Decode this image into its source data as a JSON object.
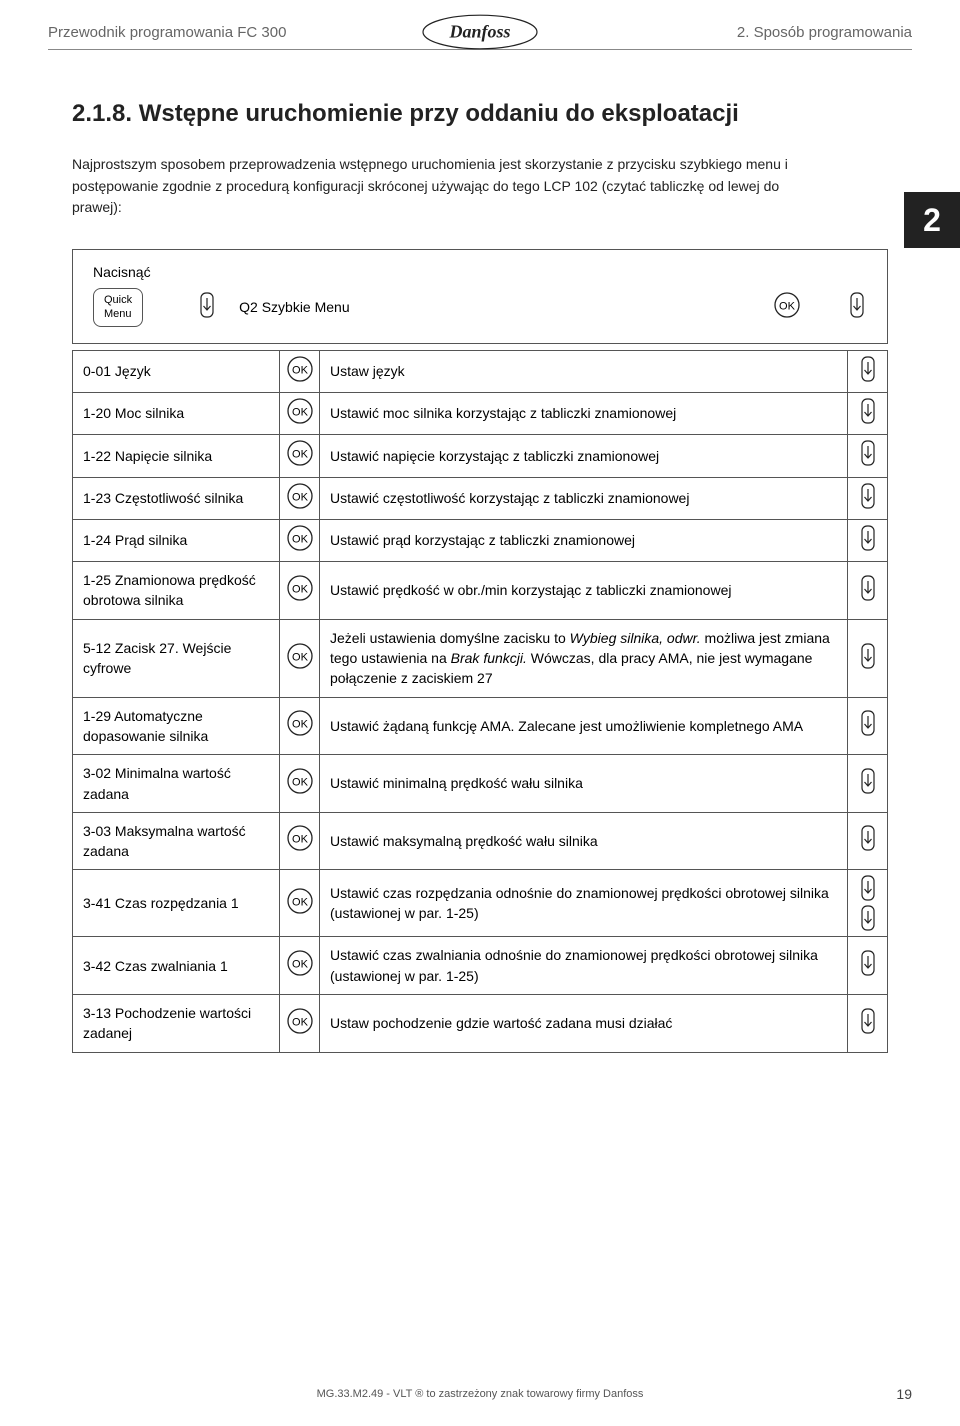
{
  "header": {
    "left": "Przewodnik programowania FC 300",
    "right": "2. Sposób programowania"
  },
  "section": {
    "heading": "2.1.8. Wstępne uruchomienie przy oddaniu do eksploatacji",
    "intro": "Najprostszym sposobem przeprowadzenia wstępnego uruchomienia jest skorzystanie z przycisku szybkiego menu i postępowanie zgodnie z procedurą konfiguracji skróconej używając do tego LCP 102 (czytać tabliczkę od lewej do prawej):",
    "badge": "2"
  },
  "press": {
    "label": "Nacisnąć",
    "quick1": "Quick",
    "quick2": "Menu",
    "q2": "Q2 Szybkie Menu"
  },
  "rows": [
    {
      "p": "0-01 Język",
      "d": "Ustaw język",
      "dn": 1
    },
    {
      "p": "1-20 Moc silnika",
      "d": "Ustawić moc silnika korzystając z tabliczki znamionowej",
      "dn": 1
    },
    {
      "p": "1-22 Napięcie silnika",
      "d": "Ustawić napięcie korzystając z tabliczki znamionowej",
      "dn": 1
    },
    {
      "p": "1-23 Częstotliwość silnika",
      "d": "Ustawić częstotliwość korzystając z tabliczki znamionowej",
      "dn": 1
    },
    {
      "p": "1-24 Prąd silnika",
      "d": "Ustawić prąd korzystając z tabliczki znamionowej",
      "dn": 1
    },
    {
      "p": "1-25 Znamionowa prędkość obrotowa silnika",
      "d": "Ustawić prędkość w obr./min korzystając z tabliczki znamionowej",
      "dn": 1
    },
    {
      "p": "5-12 Zacisk 27. Wejście cyfrowe",
      "d": "Jeżeli ustawienia domyślne zacisku to <span class=\"italic\">Wybieg silnika, odwr.</span> możliwa jest zmiana tego ustawienia na <span class=\"italic\">Brak funkcji.</span> Wówczas, dla pracy AMA, nie jest wymagane połączenie z zaciskiem 27",
      "dn": 1
    },
    {
      "p": "1-29 Automatyczne dopasowanie silnika",
      "d": "Ustawić żądaną funkcję AMA. Zalecane jest umożliwienie kompletnego AMA",
      "dn": 1
    },
    {
      "p": "3-02 Minimalna wartość zadana",
      "d": "Ustawić minimalną prędkość wału silnika",
      "dn": 1
    },
    {
      "p": "3-03 Maksymalna wartość zadana",
      "d": "Ustawić maksymalną prędkość wału silnika",
      "dn": 1
    },
    {
      "p": "3-41 Czas rozpędzania 1",
      "d": "Ustawić czas rozpędzania odnośnie do znamionowej prędkości obrotowej silnika (ustawionej w par. 1-25)",
      "dn": 2
    },
    {
      "p": "3-42 Czas zwalniania 1",
      "d": "Ustawić czas zwalniania odnośnie do znamionowej prędkości obrotowej silnika (ustawionej w par. 1-25)",
      "dn": 1
    },
    {
      "p": "3-13 Pochodzenie wartości zadanej",
      "d": "Ustaw pochodzenie gdzie wartość zadana musi działać",
      "dn": 1
    }
  ],
  "footer": {
    "text": "MG.33.M2.49 - VLT ® to zastrzeżony znak towarowy firmy Danfoss",
    "page": "19"
  }
}
